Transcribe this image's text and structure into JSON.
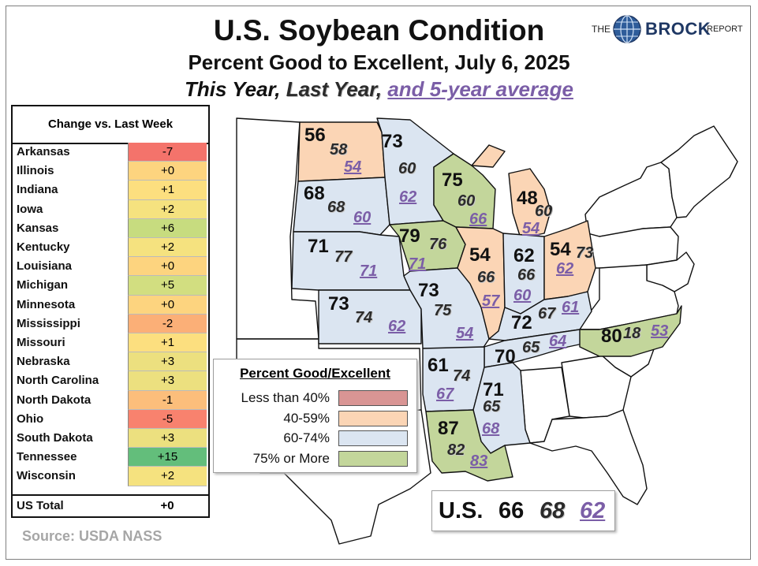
{
  "title": "U.S. Soybean Condition",
  "subtitle": "Percent Good to Excellent, July 6, 2025",
  "series_line": {
    "this_year": "This Year,",
    "last_year": "Last Year,",
    "avg": "and 5-year average"
  },
  "logo": {
    "prefix": "THE",
    "name": "BROCK",
    "suffix": "REPORT"
  },
  "source": "Source: USDA NASS",
  "change_table": {
    "header": "Change vs. Last Week",
    "rows": [
      {
        "state": "Arkansas",
        "change": "-7",
        "color": "#f4736b"
      },
      {
        "state": "Illinois",
        "change": "+0",
        "color": "#fdd47f"
      },
      {
        "state": "Indiana",
        "change": "+1",
        "color": "#fcdf7f"
      },
      {
        "state": "Iowa",
        "change": "+2",
        "color": "#f5e27f"
      },
      {
        "state": "Kansas",
        "change": "+6",
        "color": "#c7dc7f"
      },
      {
        "state": "Kentucky",
        "change": "+2",
        "color": "#f5e27f"
      },
      {
        "state": "Louisiana",
        "change": "+0",
        "color": "#fdd47f"
      },
      {
        "state": "Michigan",
        "change": "+5",
        "color": "#d2de80"
      },
      {
        "state": "Minnesota",
        "change": "+0",
        "color": "#fdd47f"
      },
      {
        "state": "Mississippi",
        "change": "-2",
        "color": "#fbaf77"
      },
      {
        "state": "Missouri",
        "change": "+1",
        "color": "#fcdf7f"
      },
      {
        "state": "Nebraska",
        "change": "+3",
        "color": "#ece07f"
      },
      {
        "state": "North Carolina",
        "change": "+3",
        "color": "#ece07f"
      },
      {
        "state": "North Dakota",
        "change": "-1",
        "color": "#fcbe7b"
      },
      {
        "state": "Ohio",
        "change": "-5",
        "color": "#f8826e"
      },
      {
        "state": "South Dakota",
        "change": "+3",
        "color": "#ece07f"
      },
      {
        "state": "Tennessee",
        "change": "+15",
        "color": "#63be7b"
      },
      {
        "state": "Wisconsin",
        "change": "+2",
        "color": "#f5e27f"
      }
    ],
    "total": {
      "label": "US Total",
      "change": "+0"
    }
  },
  "map_legend": {
    "title": "Percent Good/Excellent",
    "items": [
      {
        "label": "Less than 40%",
        "color": "#d99594"
      },
      {
        "label": "40-59%",
        "color": "#fbd5b5"
      },
      {
        "label": "60-74%",
        "color": "#dbe5f1"
      },
      {
        "label": "75% or More",
        "color": "#c3d69b"
      }
    ]
  },
  "states": [
    {
      "id": "ND",
      "this_year": "56",
      "last_year": "58",
      "avg": "54",
      "color": "#fbd5b5"
    },
    {
      "id": "SD",
      "this_year": "68",
      "last_year": "68",
      "avg": "60",
      "color": "#dbe5f1"
    },
    {
      "id": "NE",
      "this_year": "71",
      "last_year": "77",
      "avg": "71",
      "color": "#dbe5f1"
    },
    {
      "id": "KS",
      "this_year": "73",
      "last_year": "74",
      "avg": "62",
      "color": "#dbe5f1"
    },
    {
      "id": "MN",
      "this_year": "73",
      "last_year": "60",
      "avg": "62",
      "color": "#dbe5f1"
    },
    {
      "id": "IA",
      "this_year": "79",
      "last_year": "76",
      "avg": "71",
      "color": "#c3d69b"
    },
    {
      "id": "MO",
      "this_year": "73",
      "last_year": "75",
      "avg": "54",
      "color": "#dbe5f1"
    },
    {
      "id": "WI",
      "this_year": "75",
      "last_year": "60",
      "avg": "66",
      "color": "#c3d69b"
    },
    {
      "id": "IL",
      "this_year": "54",
      "last_year": "66",
      "avg": "57",
      "color": "#fbd5b5"
    },
    {
      "id": "MI",
      "this_year": "48",
      "last_year": "60",
      "avg": "54",
      "color": "#fbd5b5"
    },
    {
      "id": "IN",
      "this_year": "62",
      "last_year": "66",
      "avg": "60",
      "color": "#dbe5f1"
    },
    {
      "id": "OH",
      "this_year": "54",
      "last_year": "73",
      "avg": "62",
      "color": "#fbd5b5"
    },
    {
      "id": "KY",
      "this_year": "72",
      "last_year": "67",
      "avg": "61",
      "color": "#dbe5f1"
    },
    {
      "id": "TN",
      "this_year": "70",
      "last_year": "65",
      "avg": "64",
      "color": "#dbe5f1"
    },
    {
      "id": "NC",
      "this_year": "80",
      "last_year": "18",
      "avg": "53",
      "color": "#c3d69b"
    },
    {
      "id": "AR",
      "this_year": "61",
      "last_year": "74",
      "avg": "67",
      "color": "#dbe5f1"
    },
    {
      "id": "MS",
      "this_year": "71",
      "last_year": "65",
      "avg": "68",
      "color": "#dbe5f1"
    },
    {
      "id": "LA",
      "this_year": "87",
      "last_year": "82",
      "avg": "83",
      "color": "#c3d69b"
    }
  ],
  "us_total": {
    "label": "U.S.",
    "this_year": "66",
    "last_year": "68",
    "avg": "62"
  }
}
